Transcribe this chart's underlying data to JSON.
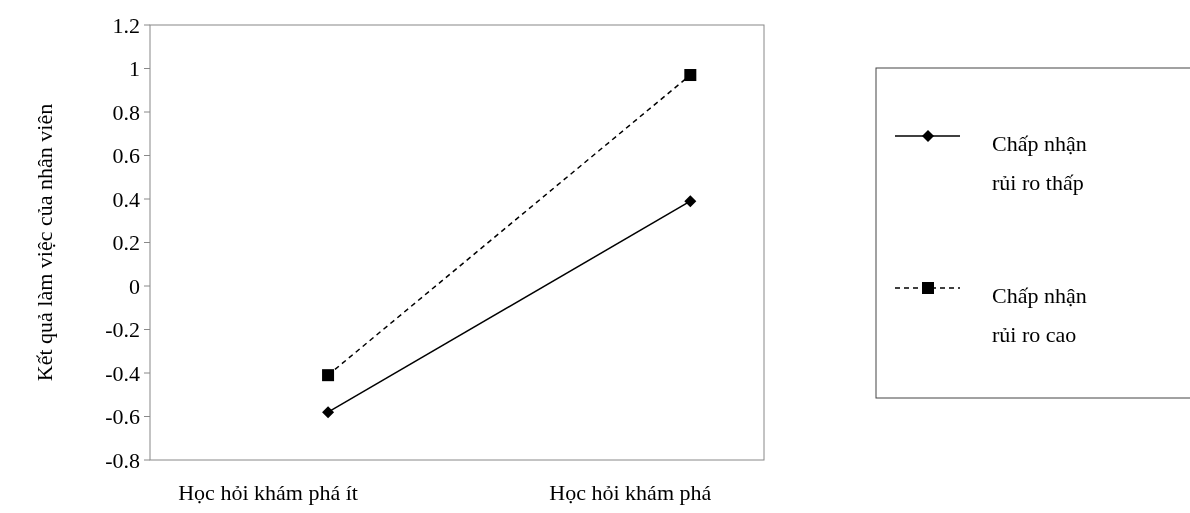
{
  "chart_data": {
    "type": "line",
    "ylabel": "Kết quả làm việc của nhân viên",
    "categories": [
      "Học hỏi khám phá ít",
      "Học hỏi khám phá"
    ],
    "series": [
      {
        "name": "Chấp nhận rủi ro thấp",
        "color": "#000000",
        "marker": "diamond",
        "line_style": "solid",
        "values": [
          -0.58,
          0.39
        ]
      },
      {
        "name": "Chấp nhận rủi ro cao",
        "color": "#000000",
        "marker": "square",
        "line_style": "dashed",
        "values": [
          -0.41,
          0.97
        ]
      }
    ],
    "ylim": [
      -0.8,
      1.2
    ],
    "yticks": [
      -0.8,
      -0.6,
      -0.4,
      -0.2,
      0,
      0.2,
      0.4,
      0.6,
      0.8,
      1,
      1.2
    ],
    "grid": false,
    "legend": "right"
  }
}
